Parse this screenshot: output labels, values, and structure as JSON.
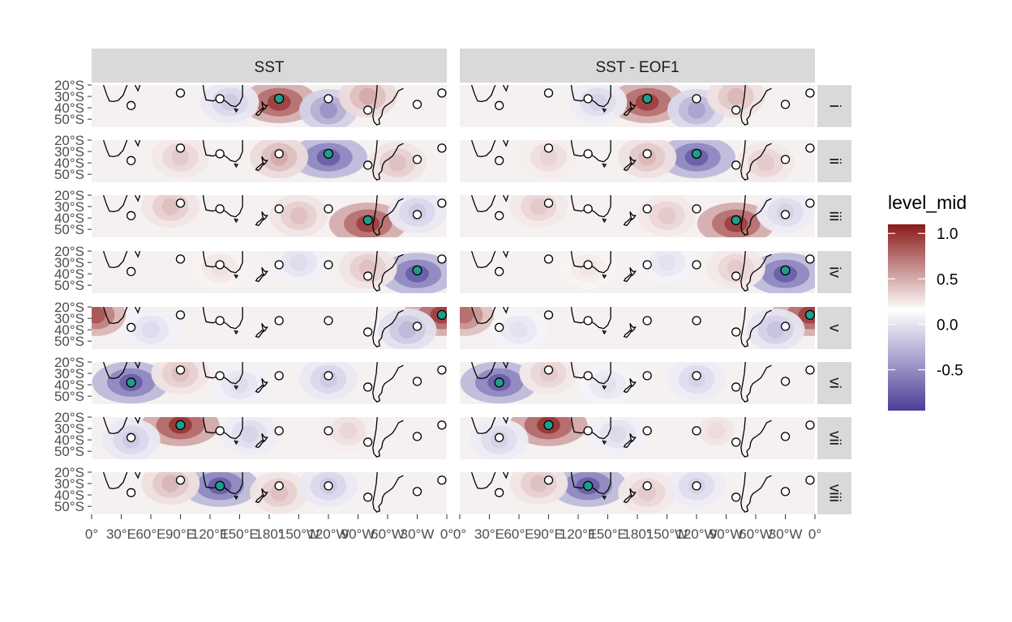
{
  "chart_data": {
    "type": "heatmap",
    "title": "",
    "columns": [
      "SST",
      "SST - EOF1"
    ],
    "rows": [
      "i",
      "ii",
      "iii",
      "iv",
      "v",
      "vi",
      "vii",
      "viii"
    ],
    "x_ticks": [
      "0°",
      "30°E",
      "60°E",
      "90°E",
      "120°E",
      "150°E",
      "180°",
      "150°W",
      "120°W",
      "90°W",
      "60°W",
      "30°W",
      "0°"
    ],
    "x_tick_values": [
      0,
      30,
      60,
      90,
      120,
      150,
      180,
      210,
      240,
      270,
      300,
      330,
      360
    ],
    "y_ticks": [
      "20°S",
      "30°S",
      "40°S",
      "50°S"
    ],
    "y_tick_values": [
      -20,
      -30,
      -40,
      -50
    ],
    "xlim": [
      0,
      360
    ],
    "ylim": [
      -57,
      -20
    ],
    "legend": {
      "title": "level_mid",
      "ticks": [
        "1.0",
        "0.5",
        "0.0",
        "-0.5"
      ],
      "tick_values": [
        1.0,
        0.5,
        0.0,
        -0.5
      ],
      "range": [
        -0.95,
        1.1
      ],
      "colors": {
        "high": "#8b1a1a",
        "mid": "#ffffff",
        "low": "#4b3f98"
      },
      "placement": "right"
    },
    "marker_color": "#1f9e89",
    "points": [
      {
        "lon": 40,
        "lat": -38
      },
      {
        "lon": 90,
        "lat": -27
      },
      {
        "lon": 130,
        "lat": -32
      },
      {
        "lon": 190,
        "lat": -32
      },
      {
        "lon": 240,
        "lat": -32
      },
      {
        "lon": 280,
        "lat": -42
      },
      {
        "lon": 330,
        "lat": -37
      },
      {
        "lon": 355,
        "lat": -27
      }
    ],
    "highlighted_point_by_row": [
      3,
      4,
      5,
      6,
      7,
      0,
      1,
      2
    ],
    "anomaly_centers": [
      [
        {
          "lon": 190,
          "lat": -35,
          "v": 0.9
        },
        {
          "lon": 240,
          "lat": -42,
          "v": -0.6
        },
        {
          "lon": 140,
          "lat": -35,
          "v": -0.3
        },
        {
          "lon": 280,
          "lat": -30,
          "v": 0.4
        }
      ],
      [
        {
          "lon": 240,
          "lat": -35,
          "v": -0.9
        },
        {
          "lon": 190,
          "lat": -35,
          "v": 0.4
        },
        {
          "lon": 90,
          "lat": -35,
          "v": 0.25
        },
        {
          "lon": 310,
          "lat": -40,
          "v": 0.3
        }
      ],
      [
        {
          "lon": 280,
          "lat": -45,
          "v": 0.9
        },
        {
          "lon": 330,
          "lat": -35,
          "v": -0.3
        },
        {
          "lon": 80,
          "lat": -30,
          "v": 0.3
        },
        {
          "lon": 210,
          "lat": -38,
          "v": 0.3
        }
      ],
      [
        {
          "lon": 330,
          "lat": -40,
          "v": -0.9
        },
        {
          "lon": 280,
          "lat": -35,
          "v": 0.3
        },
        {
          "lon": 210,
          "lat": -30,
          "v": -0.2
        },
        {
          "lon": 130,
          "lat": -35,
          "v": 0.15
        }
      ],
      [
        {
          "lon": 355,
          "lat": -27,
          "v": 0.9
        },
        {
          "lon": 5,
          "lat": -27,
          "v": 0.8
        },
        {
          "lon": 320,
          "lat": -40,
          "v": -0.4
        },
        {
          "lon": 60,
          "lat": -40,
          "v": -0.2
        }
      ],
      [
        {
          "lon": 40,
          "lat": -38,
          "v": -0.9
        },
        {
          "lon": 90,
          "lat": -30,
          "v": 0.3
        },
        {
          "lon": 240,
          "lat": -35,
          "v": -0.3
        },
        {
          "lon": 150,
          "lat": -40,
          "v": -0.2
        }
      ],
      [
        {
          "lon": 90,
          "lat": -27,
          "v": 0.95
        },
        {
          "lon": 40,
          "lat": -40,
          "v": -0.3
        },
        {
          "lon": 160,
          "lat": -35,
          "v": -0.25
        },
        {
          "lon": 260,
          "lat": -32,
          "v": 0.2
        }
      ],
      [
        {
          "lon": 130,
          "lat": -32,
          "v": -0.9
        },
        {
          "lon": 80,
          "lat": -30,
          "v": 0.35
        },
        {
          "lon": 190,
          "lat": -38,
          "v": 0.3
        },
        {
          "lon": 240,
          "lat": -32,
          "v": -0.3
        }
      ]
    ]
  }
}
